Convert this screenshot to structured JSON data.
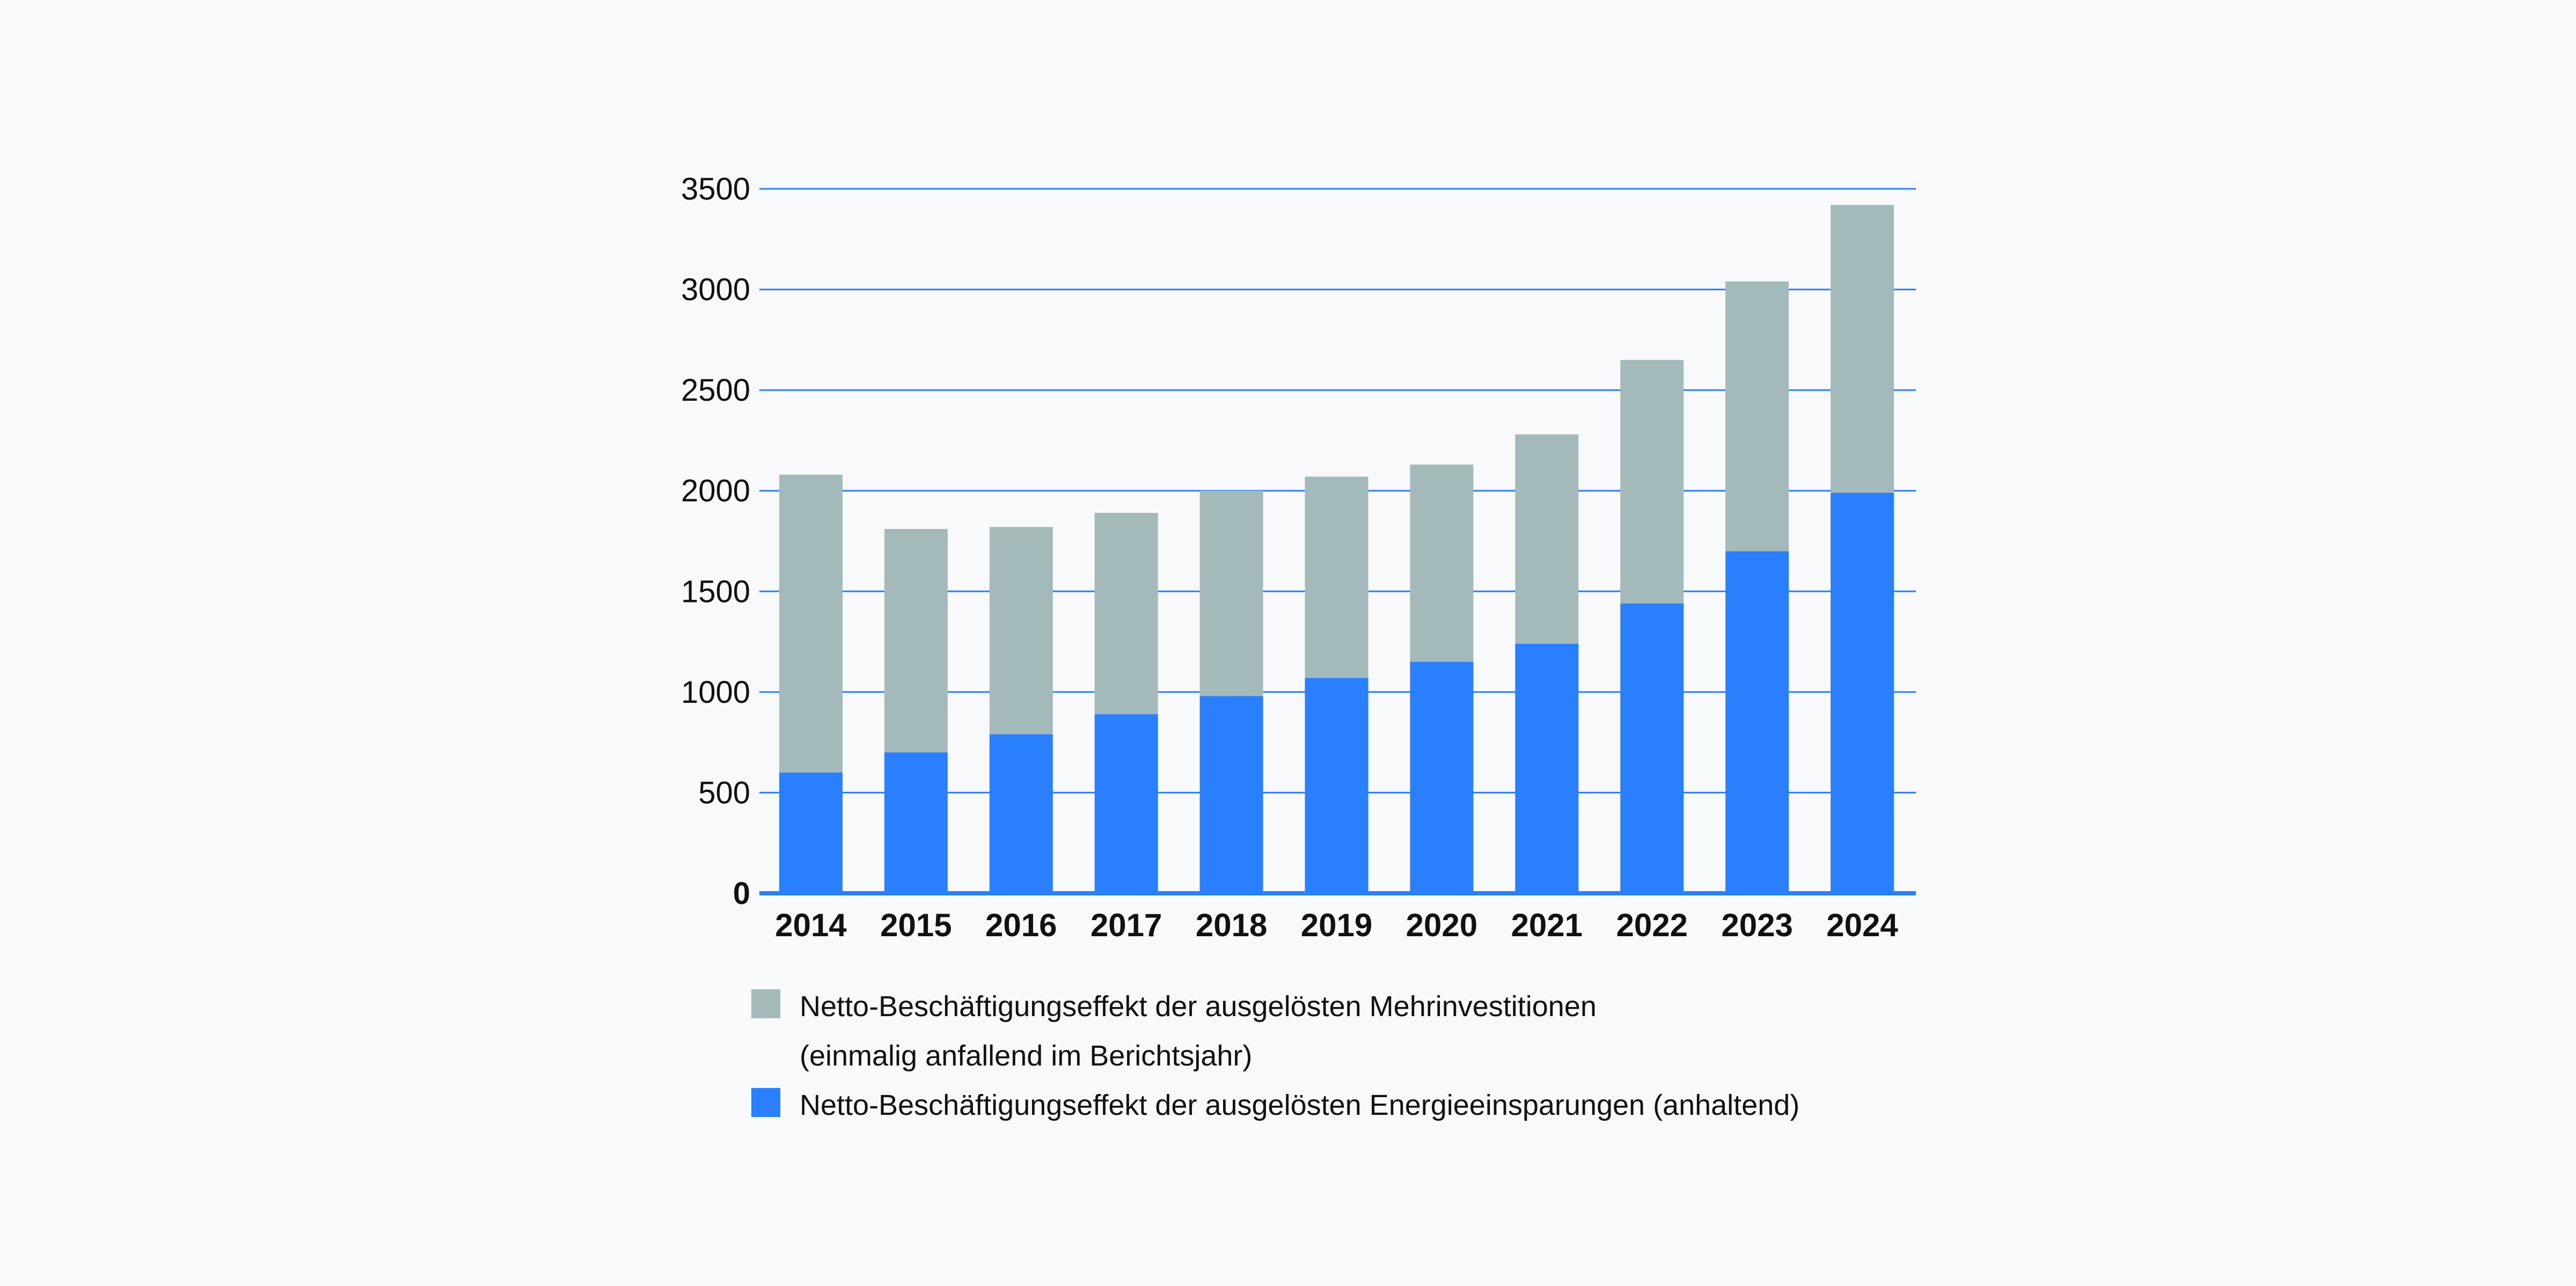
{
  "chart_data": {
    "type": "bar",
    "stacked": true,
    "categories": [
      "2014",
      "2015",
      "2016",
      "2017",
      "2018",
      "2019",
      "2020",
      "2021",
      "2022",
      "2023",
      "2024"
    ],
    "series": [
      {
        "name": "Netto-Beschäftigungseffekt der ausgelösten Energieeinsparungen (anhaltend)",
        "color": "#2a7fff",
        "values": [
          600,
          700,
          790,
          890,
          980,
          1070,
          1150,
          1240,
          1440,
          1700,
          1990
        ]
      },
      {
        "name": "Netto-Beschäftigungseffekt der ausgelösten Mehrinvestitionen (einmalig anfallend im Berichtsjahr)",
        "color": "#a3b9ba",
        "values": [
          1480,
          1110,
          1030,
          1000,
          1020,
          1000,
          980,
          1040,
          1210,
          1340,
          1430
        ]
      }
    ],
    "yticks": [
      "0",
      "500",
      "1000",
      "1500",
      "2000",
      "2500",
      "3000",
      "3500"
    ],
    "ylim": [
      0,
      3500
    ],
    "grid": true,
    "grid_color": "#2a7fff",
    "axis_color": "#2a7fff",
    "legend_position": "bottom"
  },
  "legend": {
    "items": [
      {
        "line1": "Netto-Beschäftigungseffekt der ausgelösten Mehrinvestitionen",
        "line2": "(einmalig anfallend im Berichtsjahr)",
        "color": "#a3b9ba"
      },
      {
        "line1": "Netto-Beschäftigungseffekt der ausgelösten Energieeinsparungen (anhaltend)",
        "line2": "",
        "color": "#2a7fff"
      }
    ]
  }
}
